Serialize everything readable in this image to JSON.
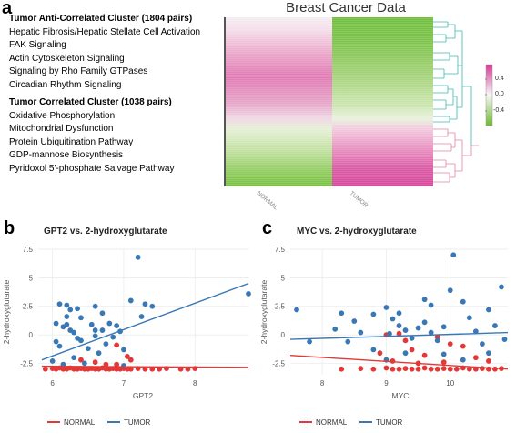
{
  "panels": {
    "a": "a",
    "b": "b",
    "c": "c"
  },
  "heatmap": {
    "title": "Breast Cancer Data",
    "anti_cluster": {
      "header": "Tumor Anti-Correlated Cluster (1804 pairs)",
      "items": [
        "Hepatic Fibrosis/Hepatic Stellate Cell Activation",
        "FAK Signaling",
        "Actin Cytoskeleton Signaling",
        "Signaling by Rho Family GTPases",
        "Circadian Rhythm Signaling"
      ]
    },
    "corr_cluster": {
      "header": "Tumor Correlated Cluster (1038 pairs)",
      "items": [
        "Oxidative Phosphorylation",
        "Mitochondrial Dysfunction",
        "Protein Ubiquitination Pathway",
        "GDP-mannose Biosynthesis",
        "Pyridoxol 5'-phosphate Salvage Pathway"
      ]
    },
    "columns": [
      "NORMAL",
      "TUMOR"
    ],
    "colorbar": {
      "ticks": [
        "0.4",
        "0.0",
        "-0.4"
      ],
      "high_color": "#d63a96",
      "mid_color": "#f7f7f7",
      "low_color": "#6fb92e"
    },
    "dendro_colors": {
      "top": "#3cb8b0",
      "bottom": "#e383a9"
    }
  },
  "legend": {
    "normal": "NORMAL",
    "tumor": "TUMOR",
    "normal_color": "#e23838",
    "tumor_color": "#3a78b5"
  },
  "chart_data": [
    {
      "type": "scatter",
      "title": "GPT2 vs. 2-hydroxyglutarate",
      "xlabel": "GPT2",
      "ylabel": "2-hydroxyglutarate",
      "xlim": [
        5.8,
        8.75
      ],
      "ylim": [
        -3.5,
        7.5
      ],
      "xticks": [
        6,
        7,
        8
      ],
      "yticks": [
        -2.5,
        0,
        2.5,
        5,
        7.5
      ],
      "series": [
        {
          "name": "NORMAL",
          "points": [
            [
              5.9,
              -3.0
            ],
            [
              6.0,
              -2.95
            ],
            [
              6.05,
              -3.0
            ],
            [
              6.1,
              -2.9
            ],
            [
              6.15,
              -3.0
            ],
            [
              6.2,
              -3.0
            ],
            [
              6.25,
              -2.9
            ],
            [
              6.3,
              -3.0
            ],
            [
              6.35,
              -3.0
            ],
            [
              6.4,
              -2.95
            ],
            [
              6.45,
              -3.0
            ],
            [
              6.5,
              -3.0
            ],
            [
              6.55,
              -2.95
            ],
            [
              6.6,
              -3.0
            ],
            [
              6.65,
              -3.0
            ],
            [
              6.7,
              -2.9
            ],
            [
              6.75,
              -3.0
            ],
            [
              6.8,
              -3.0
            ],
            [
              6.85,
              -2.95
            ],
            [
              6.9,
              -3.0
            ],
            [
              6.95,
              -3.0
            ],
            [
              7.0,
              -2.95
            ],
            [
              7.05,
              -3.0
            ],
            [
              7.1,
              -3.0
            ],
            [
              7.2,
              -2.95
            ],
            [
              7.3,
              -3.0
            ],
            [
              7.4,
              -3.0
            ],
            [
              7.5,
              -3.0
            ],
            [
              7.6,
              -2.95
            ],
            [
              7.8,
              -3.0
            ],
            [
              7.9,
              -3.0
            ],
            [
              8.0,
              -2.95
            ],
            [
              6.6,
              -2.4
            ],
            [
              6.9,
              -2.6
            ],
            [
              7.1,
              -2.2
            ],
            [
              6.4,
              -2.2
            ],
            [
              6.9,
              -0.9
            ],
            [
              7.05,
              -1.9
            ],
            [
              6.75,
              -2.6
            ]
          ],
          "trend": [
            [
              5.85,
              -2.75
            ],
            [
              8.75,
              -2.85
            ]
          ]
        },
        {
          "name": "TUMOR",
          "points": [
            [
              6.1,
              2.7
            ],
            [
              6.2,
              2.6
            ],
            [
              6.35,
              2.3
            ],
            [
              6.6,
              2.5
            ],
            [
              6.15,
              0.7
            ],
            [
              6.2,
              0.9
            ],
            [
              6.25,
              0.4
            ],
            [
              6.3,
              0.2
            ],
            [
              6.35,
              -0.3
            ],
            [
              6.4,
              -0.5
            ],
            [
              6.1,
              -1.0
            ],
            [
              6.05,
              -0.6
            ],
            [
              6.5,
              -1.2
            ],
            [
              6.55,
              0.9
            ],
            [
              6.6,
              -0.1
            ],
            [
              6.7,
              0.4
            ],
            [
              6.8,
              1.0
            ],
            [
              6.9,
              0.8
            ],
            [
              6.85,
              -0.2
            ],
            [
              6.75,
              -0.8
            ],
            [
              6.95,
              0.3
            ],
            [
              7.0,
              -1.3
            ],
            [
              6.65,
              -1.6
            ],
            [
              6.3,
              -2.0
            ],
            [
              6.0,
              -2.3
            ],
            [
              7.1,
              3.0
            ],
            [
              7.2,
              6.8
            ],
            [
              7.3,
              2.7
            ],
            [
              7.4,
              2.5
            ],
            [
              6.2,
              1.6
            ],
            [
              6.4,
              1.5
            ],
            [
              7.25,
              1.6
            ],
            [
              8.75,
              3.6
            ],
            [
              6.15,
              -2.6
            ],
            [
              6.45,
              -2.5
            ],
            [
              7.0,
              -2.7
            ],
            [
              6.05,
              1.0
            ],
            [
              6.25,
              2.2
            ],
            [
              6.7,
              1.9
            ],
            [
              6.6,
              0.4
            ]
          ],
          "trend": [
            [
              5.85,
              -2.2
            ],
            [
              8.75,
              4.5
            ]
          ]
        }
      ]
    },
    {
      "type": "scatter",
      "title": "MYC vs. 2-hydroxyglutarate",
      "xlabel": "MYC",
      "ylabel": "2-hydroxyglutarate",
      "xlim": [
        7.5,
        10.9
      ],
      "ylim": [
        -3.5,
        7.5
      ],
      "xticks": [
        8,
        9,
        10
      ],
      "yticks": [
        -2.5,
        0,
        2.5,
        5,
        7.5
      ],
      "series": [
        {
          "name": "NORMAL",
          "points": [
            [
              8.3,
              -3.0
            ],
            [
              8.6,
              -2.95
            ],
            [
              8.8,
              -3.0
            ],
            [
              9.0,
              -2.9
            ],
            [
              9.1,
              -3.0
            ],
            [
              9.2,
              -3.0
            ],
            [
              9.3,
              -2.95
            ],
            [
              9.4,
              -3.0
            ],
            [
              9.5,
              -3.0
            ],
            [
              9.6,
              -2.9
            ],
            [
              9.7,
              -3.0
            ],
            [
              9.8,
              -3.0
            ],
            [
              9.9,
              -2.95
            ],
            [
              10.0,
              -3.0
            ],
            [
              10.1,
              -3.0
            ],
            [
              10.2,
              -2.9
            ],
            [
              10.3,
              -3.0
            ],
            [
              10.4,
              -3.0
            ],
            [
              10.5,
              -2.95
            ],
            [
              10.6,
              -3.0
            ],
            [
              10.7,
              -3.0
            ],
            [
              10.8,
              -2.95
            ],
            [
              9.0,
              0.0
            ],
            [
              9.2,
              0.1
            ],
            [
              9.3,
              -0.5
            ],
            [
              9.4,
              -1.3
            ],
            [
              9.6,
              -1.8
            ],
            [
              9.8,
              -0.2
            ],
            [
              10.0,
              -0.8
            ],
            [
              10.2,
              -1.0
            ],
            [
              10.4,
              -2.0
            ],
            [
              10.6,
              -2.3
            ],
            [
              9.9,
              -2.4
            ],
            [
              9.5,
              -2.5
            ],
            [
              9.1,
              -2.3
            ],
            [
              8.9,
              -1.6
            ]
          ],
          "trend": [
            [
              7.5,
              -1.8
            ],
            [
              10.9,
              -3.0
            ]
          ]
        },
        {
          "name": "TUMOR",
          "points": [
            [
              7.6,
              2.2
            ],
            [
              8.3,
              1.9
            ],
            [
              8.5,
              1.2
            ],
            [
              8.8,
              1.8
            ],
            [
              9.0,
              2.4
            ],
            [
              9.1,
              1.4
            ],
            [
              9.2,
              0.8
            ],
            [
              9.3,
              0.4
            ],
            [
              9.4,
              -0.3
            ],
            [
              9.5,
              0.6
            ],
            [
              9.6,
              1.1
            ],
            [
              9.7,
              0.2
            ],
            [
              9.8,
              -0.5
            ],
            [
              9.9,
              0.7
            ],
            [
              10.0,
              3.9
            ],
            [
              10.05,
              7.0
            ],
            [
              10.2,
              2.9
            ],
            [
              10.3,
              1.5
            ],
            [
              10.4,
              0.3
            ],
            [
              10.5,
              -0.8
            ],
            [
              10.6,
              2.2
            ],
            [
              10.7,
              0.8
            ],
            [
              10.8,
              4.2
            ],
            [
              10.85,
              -0.4
            ],
            [
              10.6,
              -1.6
            ],
            [
              9.0,
              -2.2
            ],
            [
              8.8,
              -1.3
            ],
            [
              8.4,
              -0.6
            ],
            [
              8.2,
              0.5
            ],
            [
              7.8,
              -0.6
            ],
            [
              9.2,
              1.9
            ],
            [
              9.6,
              3.1
            ],
            [
              9.7,
              2.6
            ],
            [
              9.9,
              -1.7
            ],
            [
              9.3,
              -1.6
            ],
            [
              10.2,
              -2.2
            ],
            [
              8.6,
              0.2
            ],
            [
              9.05,
              0.1
            ]
          ],
          "trend": [
            [
              7.5,
              -0.4
            ],
            [
              10.9,
              0.2
            ]
          ]
        }
      ]
    }
  ]
}
